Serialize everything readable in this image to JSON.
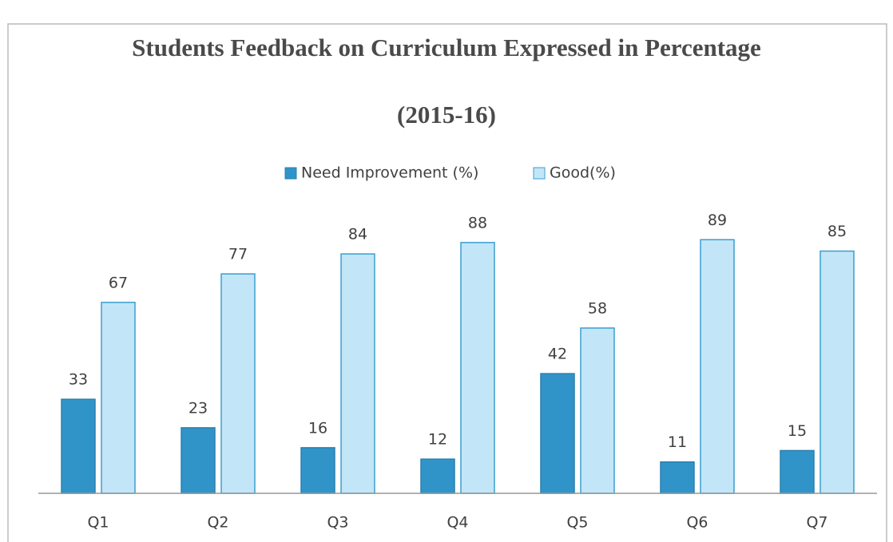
{
  "chart_data": {
    "type": "bar",
    "title": "Students Feedback on Curriculum Expressed in Percentage",
    "subtitle": "(2015-16)",
    "categories": [
      "Q1",
      "Q2",
      "Q3",
      "Q4",
      "Q5",
      "Q6",
      "Q7"
    ],
    "series": [
      {
        "name": "Need Improvement (%)",
        "color": "#3194c8",
        "values": [
          33,
          23,
          16,
          12,
          42,
          11,
          15
        ]
      },
      {
        "name": "Good(%)",
        "color": "#c2e6f7",
        "values": [
          67,
          77,
          84,
          88,
          58,
          89,
          85
        ]
      }
    ],
    "ylim": [
      0,
      100
    ],
    "legend": "top"
  }
}
